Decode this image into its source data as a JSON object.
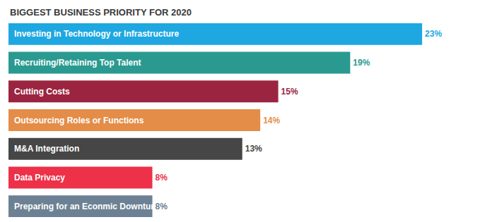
{
  "chart_data": {
    "type": "bar",
    "title": "BIGGEST BUSINESS PRIORITY FOR 2020",
    "orientation": "horizontal",
    "categories": [
      "Investing in Technology or Infrastructure",
      "Recruiting/Retaining Top Talent",
      "Cutting Costs",
      "Outsourcing Roles or Functions",
      "M&A Integration",
      "Data Privacy",
      "Preparing for an Econmic Downturn"
    ],
    "values": [
      23,
      19,
      15,
      14,
      13,
      8,
      8
    ],
    "value_labels": [
      "23%",
      "19%",
      "15%",
      "14%",
      "13%",
      "8%",
      "8%"
    ],
    "colors": [
      "#1ea7e1",
      "#2a9a91",
      "#9b2540",
      "#e48d48",
      "#464646",
      "#ed3148",
      "#6c8193"
    ],
    "xlim": [
      0,
      25
    ],
    "grid": false,
    "data_labels": true,
    "tick_labels": false
  }
}
